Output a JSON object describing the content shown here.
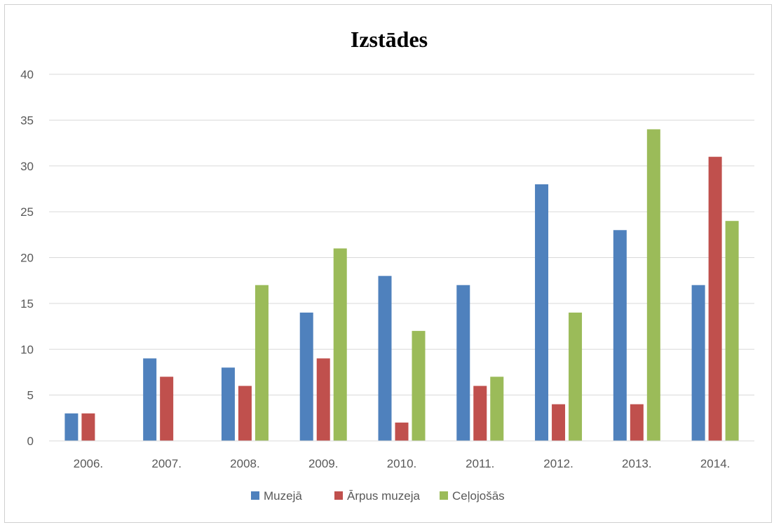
{
  "chart_data": {
    "type": "bar",
    "title": "Izstādes",
    "xlabel": "",
    "ylabel": "",
    "categories": [
      "2006.",
      "2007.",
      "2008.",
      "2009.",
      "2010.",
      "2011.",
      "2012.",
      "2013.",
      "2014."
    ],
    "series": [
      {
        "name": "Muzejā",
        "color": "#4F81BD",
        "values": [
          3,
          9,
          8,
          14,
          18,
          17,
          28,
          23,
          17
        ]
      },
      {
        "name": "Ārpus muzeja",
        "color": "#C0504D",
        "values": [
          3,
          7,
          6,
          9,
          2,
          6,
          4,
          4,
          31
        ]
      },
      {
        "name": "Ceļojošās",
        "color": "#9BBB59",
        "values": [
          0,
          0,
          17,
          21,
          12,
          7,
          14,
          34,
          24
        ]
      }
    ],
    "ylim": [
      0,
      40
    ],
    "yticks": [
      0,
      5,
      10,
      15,
      20,
      25,
      30,
      35,
      40
    ],
    "grid": true,
    "legend_position": "bottom"
  }
}
